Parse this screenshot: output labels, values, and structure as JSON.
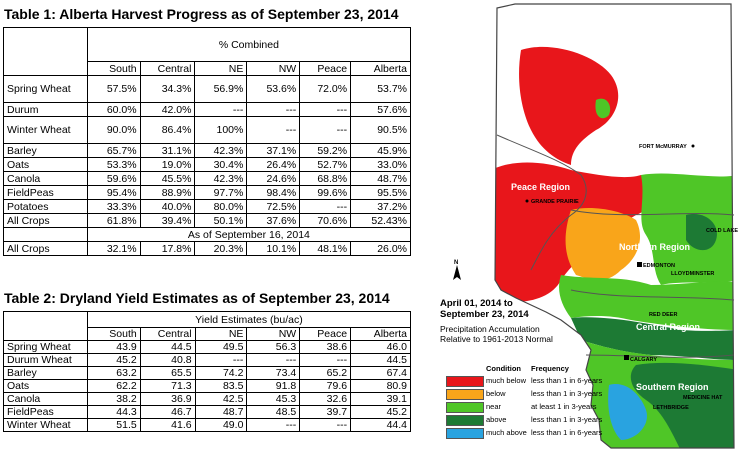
{
  "table1": {
    "title": "Table 1: Alberta Harvest Progress as of September 23, 2014",
    "group_header": "% Combined",
    "columns": [
      "South",
      "Central",
      "NE",
      "NW",
      "Peace",
      "Alberta"
    ],
    "rows": [
      {
        "label": "Spring Wheat",
        "values": [
          "57.5%",
          "34.3%",
          "56.9%",
          "53.6%",
          "72.0%",
          "53.7%"
        ]
      },
      {
        "label": "Durum",
        "values": [
          "60.0%",
          "42.0%",
          "---",
          "---",
          "---",
          "57.6%"
        ]
      },
      {
        "label": "Winter Wheat",
        "values": [
          "90.0%",
          "86.4%",
          "100%",
          "---",
          "---",
          "90.5%"
        ]
      },
      {
        "label": "Barley",
        "values": [
          "65.7%",
          "31.1%",
          "42.3%",
          "37.1%",
          "59.2%",
          "45.9%"
        ]
      },
      {
        "label": "Oats",
        "values": [
          "53.3%",
          "19.0%",
          "30.4%",
          "26.4%",
          "52.7%",
          "33.0%"
        ]
      },
      {
        "label": "Canola",
        "values": [
          "59.6%",
          "45.5%",
          "42.3%",
          "24.6%",
          "68.8%",
          "48.7%"
        ]
      },
      {
        "label": "FieldPeas",
        "values": [
          "95.4%",
          "88.9%",
          "97.7%",
          "98.4%",
          "99.6%",
          "95.5%"
        ]
      },
      {
        "label": "Potatoes",
        "values": [
          "33.3%",
          "40.0%",
          "80.0%",
          "72.5%",
          "---",
          "37.2%"
        ]
      },
      {
        "label": "All Crops",
        "values": [
          "61.8%",
          "39.4%",
          "50.1%",
          "37.6%",
          "70.6%",
          "52.43%"
        ]
      }
    ],
    "subheader": "As of September 16, 2014",
    "prev_row": {
      "label": "All Crops",
      "values": [
        "32.1%",
        "17.8%",
        "20.3%",
        "10.1%",
        "48.1%",
        "26.0%"
      ]
    }
  },
  "table2": {
    "title": "Table 2: Dryland Yield Estimates as of September 23, 2014",
    "group_header": "Yield Estimates (bu/ac)",
    "columns": [
      "South",
      "Central",
      "NE",
      "NW",
      "Peace",
      "Alberta"
    ],
    "rows": [
      {
        "label": "Spring Wheat",
        "values": [
          "43.9",
          "44.5",
          "49.5",
          "56.3",
          "38.6",
          "46.0"
        ]
      },
      {
        "label": "Durum Wheat",
        "values": [
          "45.2",
          "40.8",
          "---",
          "---",
          "---",
          "44.5"
        ]
      },
      {
        "label": "Barley",
        "values": [
          "63.2",
          "65.5",
          "74.2",
          "73.4",
          "65.2",
          "67.4"
        ]
      },
      {
        "label": "Oats",
        "values": [
          "62.2",
          "71.3",
          "83.5",
          "91.8",
          "79.6",
          "80.9"
        ]
      },
      {
        "label": "Canola",
        "values": [
          "38.2",
          "36.9",
          "42.5",
          "45.3",
          "32.6",
          "39.1"
        ]
      },
      {
        "label": "FieldPeas",
        "values": [
          "44.3",
          "46.7",
          "48.7",
          "48.5",
          "39.7",
          "45.2"
        ]
      },
      {
        "label": "Winter Wheat",
        "values": [
          "51.5",
          "41.6",
          "49.0",
          "---",
          "---",
          "44.4"
        ]
      }
    ]
  },
  "map": {
    "title_line1": "April 01, 2014 to",
    "title_line2": "September 23, 2014",
    "subtitle_line1": "Precipitation Accumulation",
    "subtitle_line2": "Relative to 1961-2013 Normal",
    "north_label": "N",
    "regions": {
      "peace": "Peace Region",
      "northern": "Northern Region",
      "central": "Central Region",
      "southern": "Southern Region"
    },
    "cities": {
      "fort_mcmurray": "FORT McMURRAY",
      "grande_prairie": "GRANDE PRAIRIE",
      "cold_lake": "COLD LAKE",
      "edmonton": "EDMONTON",
      "lloydminster": "LLOYDMINSTER",
      "red_deer": "RED DEER",
      "calgary": "CALGARY",
      "medicine_hat": "MEDICINE HAT",
      "lethbridge": "LETHBRIDGE"
    },
    "legend": {
      "condition_header": "Condition",
      "frequency_header": "Frequency",
      "items": [
        {
          "condition": "much below",
          "frequency": "less than 1 in 6-years",
          "color": "#e8161b"
        },
        {
          "condition": "below",
          "frequency": "less than 1 in 3-years",
          "color": "#f9a51a"
        },
        {
          "condition": "near",
          "frequency": "at least 1 in 3-years",
          "color": "#4fc627"
        },
        {
          "condition": "above",
          "frequency": "less than 1 in 3-years",
          "color": "#1d7a34"
        },
        {
          "condition": "much above",
          "frequency": "less than 1 in 6-years",
          "color": "#29a3e0"
        }
      ]
    }
  }
}
